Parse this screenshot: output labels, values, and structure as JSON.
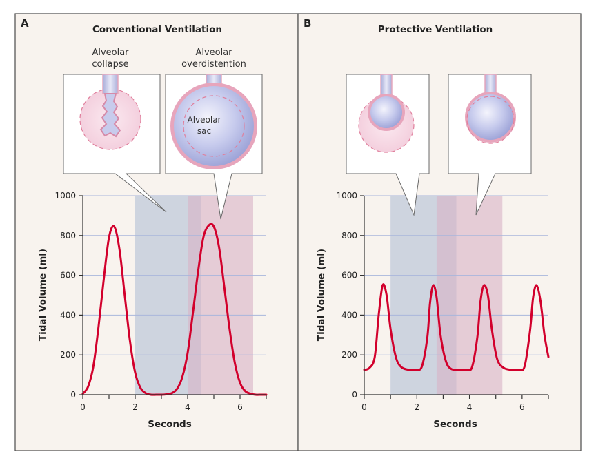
{
  "colors": {
    "curve": "#d2002c",
    "collapse_band": "#b3c0d6",
    "overdistention_band": "#d8b3c7",
    "panel_bg": "#f8f3ee",
    "alveolus_fill": "#b9bde6",
    "alveolus_wall": "#e6a8bd"
  },
  "callouts": {
    "collapse_label": "Alveolar collapse",
    "overdistention_label": "Alveolar overdistention",
    "sac_label": "Alveolar sac"
  },
  "chart_data": [
    {
      "type": "line",
      "panel_letter": "A",
      "title": "Conventional Ventilation",
      "xlabel": "Seconds",
      "ylabel": "Tidal Volume (ml)",
      "xlim": [
        0,
        7
      ],
      "ylim": [
        0,
        1000
      ],
      "xticks": [
        0,
        2,
        4,
        6
      ],
      "yticks": [
        0,
        200,
        400,
        600,
        800,
        1000
      ],
      "grid": true,
      "bands": [
        {
          "kind": "collapse",
          "x_start": 2.0,
          "x_end": 4.5
        },
        {
          "kind": "overdistention",
          "x_start": 4.0,
          "x_end": 6.5
        }
      ],
      "series": [
        {
          "x": [
            0,
            0.2,
            0.4,
            0.6,
            0.8,
            1.0,
            1.2,
            1.4,
            1.6,
            1.8,
            2.0,
            2.2,
            2.4,
            2.6,
            2.8,
            3.0,
            3.2,
            3.4,
            3.6,
            3.8,
            4.0,
            4.2,
            4.4,
            4.6,
            4.8,
            5.0,
            5.2,
            5.4,
            5.6,
            5.8,
            6.0,
            6.2,
            6.4,
            6.6,
            6.8,
            7.0
          ],
          "y": [
            5,
            40,
            140,
            340,
            580,
            790,
            845,
            730,
            500,
            270,
            110,
            35,
            8,
            0,
            0,
            0,
            2,
            8,
            30,
            90,
            210,
            410,
            620,
            790,
            850,
            845,
            740,
            540,
            330,
            160,
            60,
            18,
            5,
            0,
            0,
            0
          ]
        }
      ]
    },
    {
      "type": "line",
      "panel_letter": "B",
      "title": "Protective Ventilation",
      "xlabel": "Seconds",
      "ylabel": "Tidal Volume (ml)",
      "xlim": [
        0,
        7
      ],
      "ylim": [
        0,
        1000
      ],
      "xticks": [
        0,
        2,
        4,
        6
      ],
      "yticks": [
        0,
        200,
        400,
        600,
        800,
        1000
      ],
      "grid": true,
      "bands": [
        {
          "kind": "collapse",
          "x_start": 1.0,
          "x_end": 3.5
        },
        {
          "kind": "overdistention",
          "x_start": 2.75,
          "x_end": 5.25
        }
      ],
      "series": [
        {
          "x": [
            0,
            0.2,
            0.4,
            0.55,
            0.7,
            0.85,
            1.0,
            1.2,
            1.4,
            1.7,
            2.0,
            2.2,
            2.4,
            2.5,
            2.62,
            2.75,
            2.9,
            3.1,
            3.3,
            3.6,
            3.9,
            4.1,
            4.3,
            4.42,
            4.55,
            4.7,
            4.85,
            5.05,
            5.3,
            5.6,
            5.9,
            6.1,
            6.3,
            6.42,
            6.55,
            6.7,
            6.85,
            7.0
          ],
          "y": [
            125,
            135,
            190,
            400,
            550,
            500,
            330,
            190,
            140,
            125,
            125,
            145,
            290,
            460,
            550,
            490,
            300,
            170,
            130,
            125,
            125,
            140,
            290,
            470,
            550,
            500,
            330,
            180,
            135,
            125,
            125,
            145,
            320,
            490,
            550,
            470,
            300,
            190
          ]
        }
      ]
    }
  ]
}
